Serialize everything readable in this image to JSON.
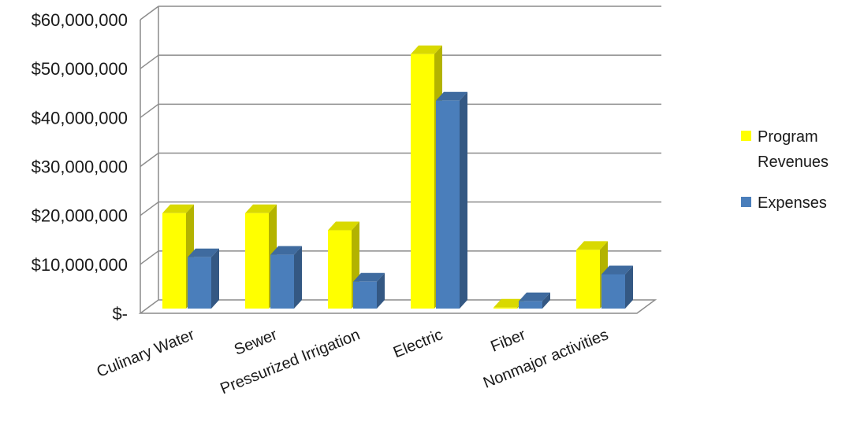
{
  "chart_data": {
    "type": "bar",
    "title": "",
    "xlabel": "",
    "ylabel": "",
    "categories": [
      "Culinary Water",
      "Sewer",
      "Pressurized Irrigation",
      "Electric",
      "Fiber",
      "Nonmajor activities"
    ],
    "series": [
      {
        "name": "Program Revenues",
        "color": "#ffff00",
        "values": [
          19500000,
          19500000,
          16000000,
          52000000,
          200000,
          12000000
        ]
      },
      {
        "name": "Expenses",
        "color": "#4a7ebb",
        "values": [
          10500000,
          11000000,
          5500000,
          42500000,
          1500000,
          7000000
        ]
      }
    ],
    "ylim": [
      0,
      60000000
    ],
    "yticks": [
      {
        "value": 0,
        "label": "$-"
      },
      {
        "value": 10000000,
        "label": "$10,000,000"
      },
      {
        "value": 20000000,
        "label": "$20,000,000"
      },
      {
        "value": 30000000,
        "label": "$30,000,000"
      },
      {
        "value": 40000000,
        "label": "$40,000,000"
      },
      {
        "value": 50000000,
        "label": "$50,000,000"
      },
      {
        "value": 60000000,
        "label": "$60,000,000"
      }
    ],
    "legend": {
      "position": "right",
      "entries": [
        {
          "lines": [
            "Program",
            "Revenues"
          ],
          "color": "#ffff00"
        },
        {
          "lines": [
            "Expenses"
          ],
          "color": "#4a7ebb"
        }
      ]
    },
    "grid": true,
    "style": "3d-clustered-column"
  }
}
